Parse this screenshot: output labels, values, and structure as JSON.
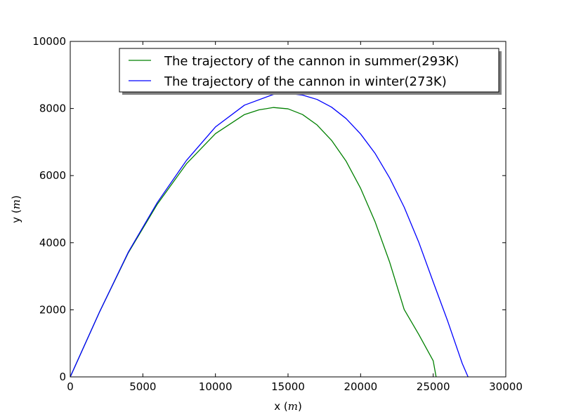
{
  "chart_data": {
    "type": "line",
    "title": "",
    "xlabel_prefix": "x",
    "xlabel_unit": "m",
    "ylabel_prefix": "y",
    "ylabel_unit": "m",
    "xlim": [
      0,
      30000
    ],
    "ylim": [
      0,
      10000
    ],
    "xticks": [
      0,
      5000,
      10000,
      15000,
      20000,
      25000,
      30000
    ],
    "yticks": [
      0,
      2000,
      4000,
      6000,
      8000,
      10000
    ],
    "grid": false,
    "legend_position": "top-right",
    "series": [
      {
        "name": "The trajectory of the cannon in summer(293K)",
        "color": "#008000",
        "x": [
          0,
          2000,
          4000,
          6000,
          8000,
          10000,
          12000,
          13000,
          14000,
          15000,
          16000,
          17000,
          18000,
          19000,
          20000,
          21000,
          22000,
          23000,
          24000,
          25000,
          25200
        ],
        "y": [
          0,
          1920,
          3700,
          5150,
          6350,
          7250,
          7820,
          7960,
          8030,
          7990,
          7820,
          7510,
          7050,
          6430,
          5620,
          4620,
          3420,
          2010,
          1270,
          480,
          0
        ]
      },
      {
        "name": "The trajectory of the cannon in winter(273K)",
        "color": "#0000ff",
        "x": [
          0,
          2000,
          4000,
          6000,
          8000,
          10000,
          12000,
          14000,
          15000,
          16000,
          17000,
          18000,
          19000,
          20000,
          21000,
          22000,
          23000,
          24000,
          25000,
          26000,
          27000,
          27400
        ],
        "y": [
          0,
          1920,
          3720,
          5200,
          6450,
          7450,
          8100,
          8420,
          8450,
          8400,
          8270,
          8040,
          7700,
          7240,
          6660,
          5930,
          5060,
          4020,
          2830,
          1660,
          400,
          0
        ]
      }
    ]
  }
}
